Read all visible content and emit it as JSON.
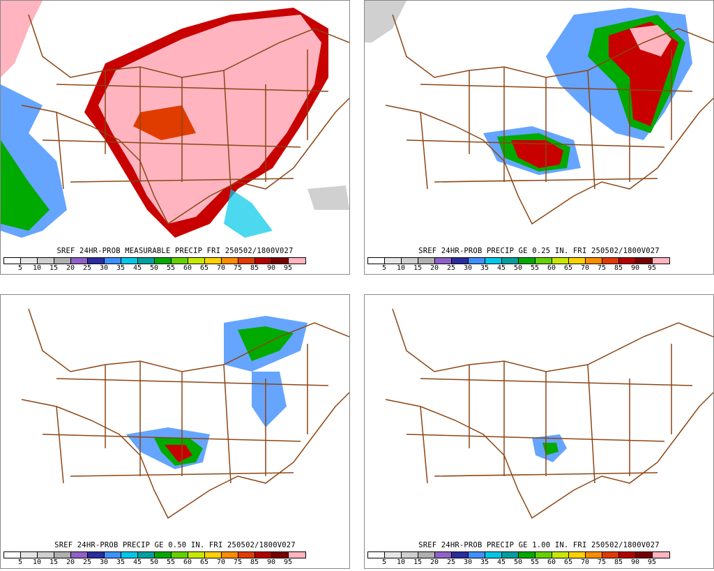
{
  "panels": [
    {
      "id": "p1",
      "caption": "SREF 24HR-PROB MEASURABLE PRECIP FRI 250502/1800V027"
    },
    {
      "id": "p2",
      "caption": "SREF 24HR-PROB PRECIP GE 0.25 IN. FRI 250502/1800V027"
    },
    {
      "id": "p3",
      "caption": "SREF 24HR-PROB PRECIP GE 0.50 IN. FRI 250502/1800V027"
    },
    {
      "id": "p4",
      "caption": "SREF 24HR-PROB PRECIP GE 1.00 IN. FRI 250502/1800V027"
    }
  ],
  "legend": {
    "ticks": [
      "5",
      "10",
      "15",
      "20",
      "25",
      "30",
      "35",
      "45",
      "50",
      "55",
      "60",
      "65",
      "70",
      "75",
      "85",
      "90",
      "95"
    ],
    "colors": [
      "#ffffff",
      "#e6e6e6",
      "#cfcfcf",
      "#b0b0b0",
      "#8f62c8",
      "#2c2c9e",
      "#3f8fff",
      "#00c8e8",
      "#00a0a0",
      "#00aa00",
      "#66d000",
      "#c8e800",
      "#ffd200",
      "#ff8c00",
      "#e03c00",
      "#b40000",
      "#780000",
      "#ffb4c0"
    ]
  },
  "colors": {
    "border": "#8b4513"
  }
}
